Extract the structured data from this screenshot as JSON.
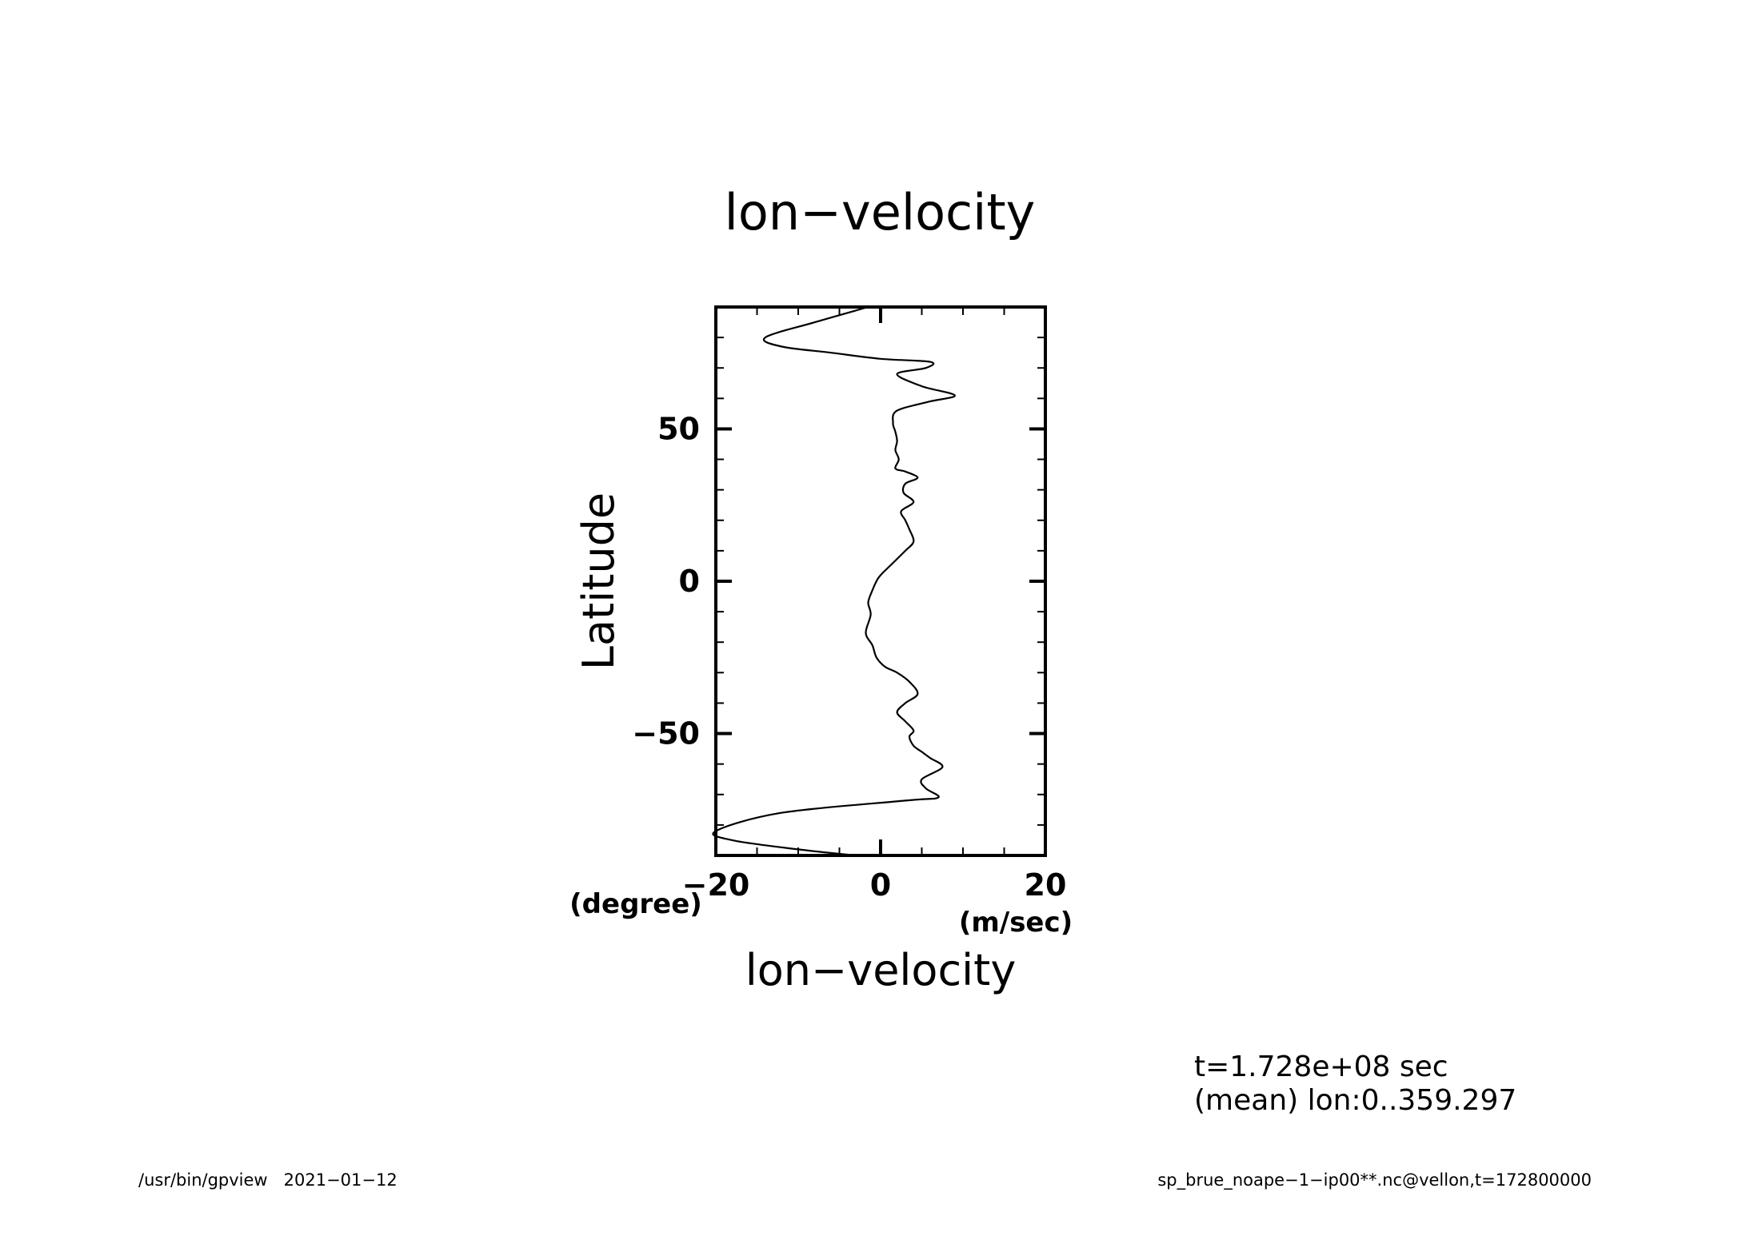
{
  "chart_data": {
    "type": "line",
    "title": "lon−velocity",
    "xlabel": "lon−velocity",
    "ylabel": "Latitude",
    "x_unit": "(m/sec)",
    "y_unit": "(degree)",
    "xlim": [
      -20,
      20
    ],
    "ylim": [
      -90,
      90
    ],
    "x_tick_labels": [
      "−20",
      "0",
      "20"
    ],
    "x_ticks": [
      -20,
      0,
      20
    ],
    "y_tick_labels": [
      "50",
      "0",
      "−50"
    ],
    "y_ticks": [
      50,
      0,
      -50
    ],
    "grid": false,
    "series": [
      {
        "x": [
          -1.5,
          -8,
          -14,
          -12,
          -6,
          0,
          6,
          5.5,
          2,
          5,
          9,
          6,
          2,
          1.5,
          1.8,
          2,
          1.8,
          2.2,
          1.8,
          3,
          4.5,
          3,
          2.8,
          4,
          2.5,
          3,
          3.5,
          4,
          3,
          1.5,
          0,
          -0.5,
          -1,
          -1.5,
          -1.2,
          -1.8,
          -1,
          -0.5,
          0.5,
          2,
          3.5,
          4.5,
          3,
          2,
          3,
          4,
          3.5,
          4,
          5,
          6,
          7.5,
          5,
          5.5,
          7,
          3,
          -12,
          -20,
          -18,
          -10,
          -3
        ],
        "y": [
          90,
          85,
          80,
          77,
          75,
          73,
          72,
          70,
          68,
          64,
          61,
          59,
          56,
          52,
          49,
          46,
          43,
          40,
          37,
          36,
          34,
          32,
          29,
          26,
          23,
          20,
          17,
          13,
          10,
          6,
          2,
          0,
          -3,
          -7,
          -11,
          -17,
          -21,
          -25,
          -28,
          -30,
          -33,
          -37,
          -40,
          -43,
          -46,
          -49,
          -51,
          -54,
          -56,
          -58,
          -61,
          -65,
          -68,
          -71,
          -72,
          -76,
          -82,
          -85,
          -88,
          -90
        ]
      }
    ]
  },
  "info": {
    "line1": "t=1.728e+08 sec",
    "line2": "(mean) lon:0..359.297"
  },
  "footer": {
    "left": "/usr/bin/gpview   2021−01−12",
    "right": "sp_brue_noape−1−ip00**.nc@vellon,t=172800000"
  }
}
